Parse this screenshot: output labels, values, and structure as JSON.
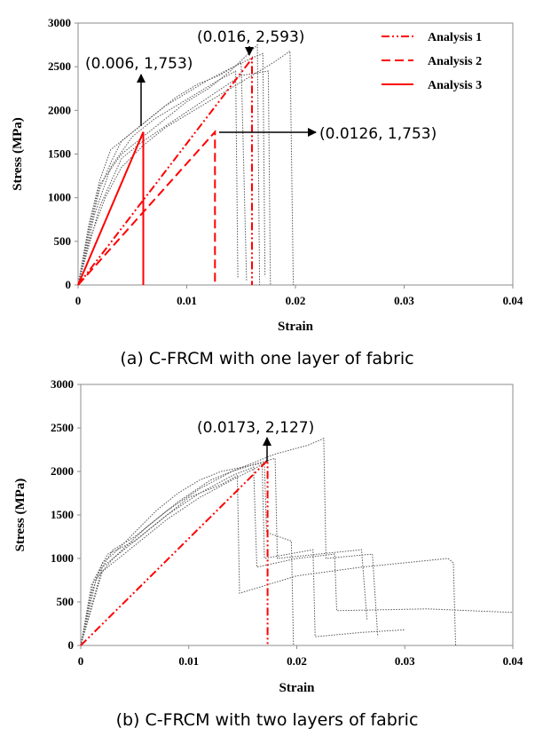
{
  "chart_data": [
    {
      "type": "line",
      "caption": "(a) C-FRCM with one layer of fabric",
      "xlabel": "Strain",
      "ylabel": "Stress (MPa)",
      "xlim": [
        0,
        0.04
      ],
      "ylim": [
        0,
        3000
      ],
      "x_ticks": [
        "0",
        "0.01",
        "0.02",
        "0.03",
        "0.04"
      ],
      "y_ticks": [
        "0",
        "500",
        "1000",
        "1500",
        "2000",
        "2500",
        "3000"
      ],
      "legend_position": "top-right",
      "series": [
        {
          "name": "Analysis 1",
          "style": "dash-dot-dot",
          "color": "#ff0000",
          "x": [
            0,
            0.016,
            0.016
          ],
          "y": [
            0,
            2593,
            0
          ]
        },
        {
          "name": "Analysis 2",
          "style": "dashed",
          "color": "#ff0000",
          "x": [
            0,
            0.0126,
            0.0126
          ],
          "y": [
            0,
            1753,
            0
          ]
        },
        {
          "name": "Analysis 3",
          "style": "solid",
          "color": "#ff0000",
          "x": [
            0,
            0.006,
            0.006
          ],
          "y": [
            0,
            1753,
            0
          ]
        }
      ],
      "experimental_curves": [
        {
          "x": [
            0,
            0.001,
            0.002,
            0.003,
            0.004,
            0.006,
            0.008,
            0.01,
            0.012,
            0.014,
            0.016,
            0.017,
            0.0172
          ],
          "y": [
            0,
            600,
            1100,
            1400,
            1650,
            1850,
            2050,
            2200,
            2350,
            2480,
            2600,
            2650,
            100
          ]
        },
        {
          "x": [
            0,
            0.001,
            0.002,
            0.003,
            0.005,
            0.007,
            0.009,
            0.011,
            0.013,
            0.015,
            0.0155
          ],
          "y": [
            0,
            700,
            1200,
            1550,
            1750,
            1950,
            2150,
            2300,
            2400,
            2550,
            50
          ]
        },
        {
          "x": [
            0,
            0.001,
            0.0025,
            0.004,
            0.006,
            0.008,
            0.01,
            0.012,
            0.014,
            0.016,
            0.018,
            0.0195,
            0.0198
          ],
          "y": [
            0,
            500,
            1000,
            1350,
            1600,
            1800,
            1950,
            2100,
            2250,
            2400,
            2550,
            2680,
            0
          ]
        },
        {
          "x": [
            0,
            0.0015,
            0.003,
            0.005,
            0.007,
            0.009,
            0.011,
            0.013,
            0.0145,
            0.0147
          ],
          "y": [
            0,
            800,
            1350,
            1700,
            1900,
            2050,
            2200,
            2350,
            2450,
            80
          ]
        },
        {
          "x": [
            0,
            0.001,
            0.002,
            0.004,
            0.006,
            0.008,
            0.01,
            0.012,
            0.014,
            0.0165,
            0.0167
          ],
          "y": [
            0,
            650,
            1150,
            1500,
            1700,
            1900,
            2100,
            2250,
            2450,
            2750,
            0
          ]
        },
        {
          "x": [
            0,
            0.002,
            0.004,
            0.006,
            0.009,
            0.012,
            0.015,
            0.0175,
            0.0177
          ],
          "y": [
            0,
            900,
            1450,
            1650,
            1900,
            2150,
            2400,
            2450,
            0
          ]
        }
      ],
      "annotations": [
        {
          "text": "(0.016, 2,593)",
          "x": 0.016,
          "y": 2593
        },
        {
          "text": "(0.006, 1,753)",
          "x": 0.006,
          "y": 1753
        },
        {
          "text": "(0.0126, 1,753)",
          "x": 0.0126,
          "y": 1753
        }
      ]
    },
    {
      "type": "line",
      "caption": "(b) C-FRCM with two layers of fabric",
      "xlabel": "Strain",
      "ylabel": "Stress (MPa)",
      "xlim": [
        0,
        0.04
      ],
      "ylim": [
        0,
        3000
      ],
      "x_ticks": [
        "0",
        "0.01",
        "0.02",
        "0.03",
        "0.04"
      ],
      "y_ticks": [
        "0",
        "500",
        "1000",
        "1500",
        "2000",
        "2500",
        "3000"
      ],
      "series": [
        {
          "name": "",
          "style": "dash-dot-dot",
          "color": "#ff0000",
          "x": [
            0,
            0.0173,
            0.0173
          ],
          "y": [
            0,
            2127,
            0
          ]
        }
      ],
      "experimental_curves": [
        {
          "x": [
            0,
            0.001,
            0.002,
            0.003,
            0.005,
            0.007,
            0.009,
            0.011,
            0.013,
            0.015,
            0.017,
            0.0172,
            0.0195,
            0.0197
          ],
          "y": [
            0,
            600,
            950,
            1050,
            1300,
            1550,
            1750,
            1900,
            2000,
            2050,
            2100,
            1300,
            1200,
            0
          ]
        },
        {
          "x": [
            0,
            0.0015,
            0.003,
            0.005,
            0.008,
            0.011,
            0.014,
            0.016,
            0.018,
            0.0182,
            0.022,
            0.026,
            0.0265
          ],
          "y": [
            0,
            800,
            1100,
            1250,
            1550,
            1800,
            2000,
            2080,
            2150,
            1000,
            1050,
            1100,
            300
          ]
        },
        {
          "x": [
            0,
            0.001,
            0.003,
            0.006,
            0.009,
            0.012,
            0.015,
            0.018,
            0.021,
            0.0225,
            0.0227,
            0.027,
            0.0275
          ],
          "y": [
            0,
            700,
            1000,
            1350,
            1650,
            1900,
            2050,
            2200,
            2300,
            2380,
            1000,
            1050,
            100
          ]
        },
        {
          "x": [
            0,
            0.002,
            0.004,
            0.007,
            0.01,
            0.013,
            0.0145,
            0.0147,
            0.02,
            0.026,
            0.034,
            0.0345,
            0.0347
          ],
          "y": [
            0,
            900,
            1100,
            1400,
            1700,
            1850,
            1950,
            600,
            800,
            900,
            1000,
            950,
            0
          ]
        },
        {
          "x": [
            0,
            0.0012,
            0.0025,
            0.005,
            0.008,
            0.011,
            0.014,
            0.016,
            0.0163,
            0.02,
            0.0235,
            0.0237,
            0.032,
            0.04
          ],
          "y": [
            0,
            750,
            1050,
            1200,
            1500,
            1750,
            1950,
            2050,
            900,
            1000,
            1050,
            400,
            420,
            380
          ]
        },
        {
          "x": [
            0,
            0.002,
            0.005,
            0.008,
            0.011,
            0.014,
            0.0168,
            0.017,
            0.0215,
            0.0217,
            0.026,
            0.03
          ],
          "y": [
            0,
            850,
            1150,
            1450,
            1700,
            1900,
            2080,
            1000,
            1100,
            100,
            150,
            180
          ]
        }
      ],
      "annotations": [
        {
          "text": "(0.0173, 2,127)",
          "x": 0.0173,
          "y": 2127
        }
      ]
    }
  ]
}
